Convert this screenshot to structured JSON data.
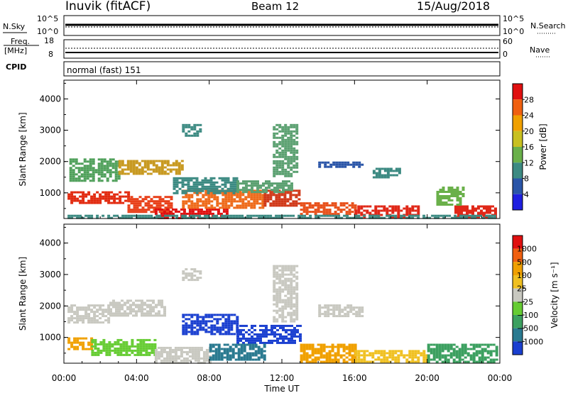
{
  "header": {
    "station": "Inuvik (fitACF)",
    "beam": "Beam 12",
    "date": "15/Aug/2018"
  },
  "top_panels": {
    "nsky_label": "N.Sky",
    "nsky_ticks": [
      "10^5",
      "10^0"
    ],
    "nsearch_label": "N.Search",
    "nsearch_ticks": [
      "10^5",
      "10^0"
    ],
    "freq_label_1": "Freq.",
    "freq_label_2": "[MHz]",
    "freq_ticks": [
      "18",
      "8"
    ],
    "nave_label": "Nave",
    "nave_ticks": [
      "60",
      "0"
    ],
    "cpid_label": "CPID",
    "cpid_value": "normal (fast) 151"
  },
  "chart_data": [
    {
      "type": "heatmap",
      "name": "power",
      "ylabel": "Slant Range [km]",
      "yticks": [
        "1000",
        "2000",
        "3000",
        "4000"
      ],
      "ylim": [
        180,
        4600
      ],
      "xlabel": "Time UT",
      "xticks": [
        "00:00",
        "04:00",
        "08:00",
        "12:00",
        "16:00",
        "20:00",
        "00:00"
      ],
      "xlim_hours": [
        0,
        24
      ],
      "colorbar_label": "Power [dB]",
      "colorbar_ticks": [
        "4",
        "8",
        "12",
        "16",
        "20",
        "24",
        "28"
      ],
      "colorbar_colors": [
        "#1f1fe0",
        "#2a55a8",
        "#3c8a82",
        "#6ab04a",
        "#c8c020",
        "#f0a000",
        "#f06010",
        "#e01010"
      ],
      "bands": [
        {
          "t0": 0.2,
          "t1": 3.5,
          "r0": 650,
          "r1": 1050,
          "color": "#e22a0f"
        },
        {
          "t0": 3.5,
          "t1": 6.0,
          "r0": 400,
          "r1": 900,
          "color": "#e8401a"
        },
        {
          "t0": 5.0,
          "t1": 9.0,
          "r0": 180,
          "r1": 500,
          "color": "#e01010"
        },
        {
          "t0": 6.5,
          "t1": 11.0,
          "r0": 500,
          "r1": 1100,
          "color": "#ee6a1a"
        },
        {
          "t0": 11.0,
          "t1": 13.0,
          "r0": 600,
          "r1": 1100,
          "color": "#d03818"
        },
        {
          "t0": 13.0,
          "t1": 16.0,
          "r0": 300,
          "r1": 700,
          "color": "#e8501a"
        },
        {
          "t0": 16.0,
          "t1": 19.5,
          "r0": 200,
          "r1": 600,
          "color": "#e02818"
        },
        {
          "t0": 21.5,
          "t1": 23.8,
          "r0": 200,
          "r1": 600,
          "color": "#e02818"
        },
        {
          "t0": 0.3,
          "t1": 3.0,
          "r0": 1400,
          "r1": 2100,
          "color": "#4fa05a"
        },
        {
          "t0": 3.0,
          "t1": 6.5,
          "r0": 1600,
          "r1": 2050,
          "color": "#c89a22"
        },
        {
          "t0": 6.0,
          "t1": 9.5,
          "r0": 1000,
          "r1": 1500,
          "color": "#3c8a82"
        },
        {
          "t0": 9.5,
          "t1": 12.5,
          "r0": 1000,
          "r1": 1400,
          "color": "#5aa070"
        },
        {
          "t0": 11.5,
          "t1": 12.8,
          "r0": 1500,
          "r1": 3200,
          "color": "#5aa070"
        },
        {
          "t0": 14.0,
          "t1": 16.5,
          "r0": 1800,
          "r1": 2000,
          "color": "#2a55a8"
        },
        {
          "t0": 17.0,
          "t1": 18.5,
          "r0": 1500,
          "r1": 1800,
          "color": "#3c8a82"
        },
        {
          "t0": 20.5,
          "t1": 22.0,
          "r0": 600,
          "r1": 1200,
          "color": "#6ab04a"
        },
        {
          "t0": 6.5,
          "t1": 7.5,
          "r0": 2800,
          "r1": 3200,
          "color": "#3c8a82"
        },
        {
          "t0": 0.2,
          "t1": 23.8,
          "r0": 180,
          "r1": 300,
          "color": "#3c8a82"
        }
      ]
    },
    {
      "type": "heatmap",
      "name": "velocity",
      "ylabel": "Slant Range [km]",
      "yticks": [
        "1000",
        "2000",
        "3000",
        "4000"
      ],
      "ylim": [
        180,
        4600
      ],
      "xlabel": "Time UT",
      "xticks": [
        "00:00",
        "04:00",
        "08:00",
        "12:00",
        "16:00",
        "20:00",
        "00:00"
      ],
      "xlim_hours": [
        0,
        24
      ],
      "colorbar_label": "Velocity [m s⁻¹]",
      "colorbar_ticks": [
        "1000",
        "500",
        "100",
        "25",
        "−25",
        "−100",
        "−500",
        "−1000"
      ],
      "colorbar_colors": [
        "#1a3fd0",
        "#2a7a90",
        "#3ca060",
        "#66cc33",
        "#c8c8c0",
        "#f0c020",
        "#f0a000",
        "#f06010",
        "#e01010"
      ],
      "bands": [
        {
          "t0": 0.2,
          "t1": 2.5,
          "r0": 1500,
          "r1": 2050,
          "color": "#c8c8c0"
        },
        {
          "t0": 2.5,
          "t1": 5.5,
          "r0": 1700,
          "r1": 2200,
          "color": "#c8c8c0"
        },
        {
          "t0": 0.2,
          "t1": 1.5,
          "r0": 600,
          "r1": 1000,
          "color": "#f0a000"
        },
        {
          "t0": 1.5,
          "t1": 5.0,
          "r0": 450,
          "r1": 950,
          "color": "#66cc33"
        },
        {
          "t0": 5.0,
          "t1": 8.0,
          "r0": 200,
          "r1": 700,
          "color": "#c8c8c0"
        },
        {
          "t0": 6.5,
          "t1": 9.5,
          "r0": 1100,
          "r1": 1750,
          "color": "#1a3fd0"
        },
        {
          "t0": 9.5,
          "t1": 13.0,
          "r0": 800,
          "r1": 1400,
          "color": "#1a3fd0"
        },
        {
          "t0": 13.0,
          "t1": 16.0,
          "r0": 200,
          "r1": 800,
          "color": "#f0a000"
        },
        {
          "t0": 16.0,
          "t1": 20.0,
          "r0": 200,
          "r1": 600,
          "color": "#f0c020"
        },
        {
          "t0": 20.0,
          "t1": 23.8,
          "r0": 200,
          "r1": 800,
          "color": "#3ca060"
        },
        {
          "t0": 11.5,
          "t1": 12.8,
          "r0": 1500,
          "r1": 3300,
          "color": "#c8c8c0"
        },
        {
          "t0": 14.0,
          "t1": 16.5,
          "r0": 1700,
          "r1": 2050,
          "color": "#c8c8c0"
        },
        {
          "t0": 6.5,
          "t1": 7.5,
          "r0": 2800,
          "r1": 3200,
          "color": "#c8c8c0"
        },
        {
          "t0": 8.0,
          "t1": 11.0,
          "r0": 300,
          "r1": 800,
          "color": "#2a7a90"
        }
      ]
    }
  ]
}
